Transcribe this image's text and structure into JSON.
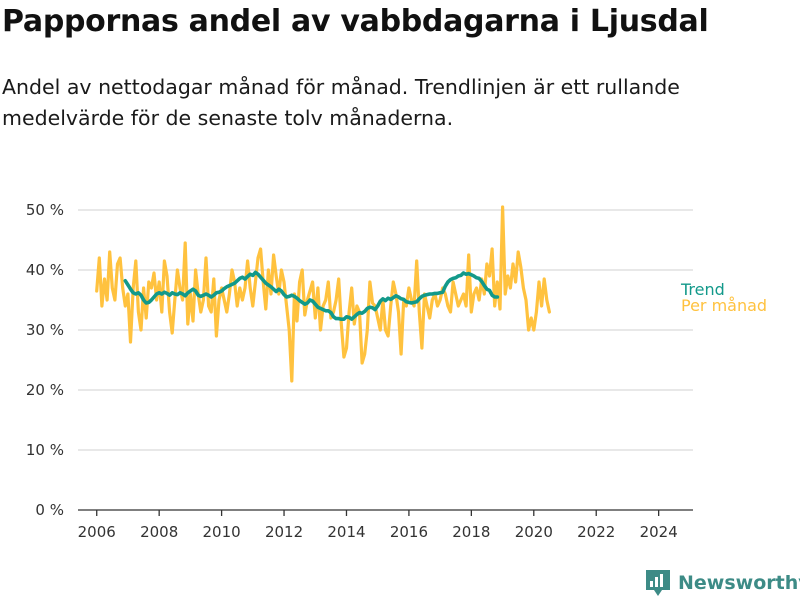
{
  "title": "Pappornas andel av vabbdagarna i Ljusdal",
  "subtitle": "Andel av nettodagar månad för månad. Trendlinjen är ett rullande medelvärde för de senaste tolv månaderna.",
  "brand": "Newsworthy",
  "colors": {
    "monthly": "#ffc23f",
    "trend": "#12998a",
    "grid": "#d9d9d9",
    "axis": "#333333",
    "brand": "#3d8b86"
  },
  "chart_data": {
    "type": "line",
    "title": "Pappornas andel av vabbdagarna i Ljusdal",
    "xlabel": "",
    "ylabel": "",
    "xlim": [
      2005.4,
      2025.1
    ],
    "ylim": [
      0,
      50
    ],
    "grid": true,
    "legend": "right",
    "x_ticks": [
      "2006",
      "2008",
      "2010",
      "2012",
      "2014",
      "2016",
      "2018",
      "2020",
      "2022",
      "2024"
    ],
    "y_ticks": [
      "0 %",
      "10 %",
      "20 %",
      "30 %",
      "40 %",
      "50 %"
    ],
    "series": [
      {
        "name": "Per månad",
        "x_start": 2006.0,
        "x_step": 0.08333,
        "values": [
          36.5,
          42,
          34,
          38.5,
          35,
          43,
          37,
          35,
          41,
          42,
          37,
          34,
          36,
          28,
          37,
          41.5,
          33,
          30,
          37,
          32,
          38,
          37,
          39.5,
          35,
          38,
          33,
          41.5,
          39,
          33,
          29.5,
          35,
          40,
          37,
          35,
          44.5,
          31,
          36,
          31.5,
          40,
          36,
          33,
          35,
          42,
          34,
          33,
          38.5,
          29,
          35,
          37,
          35,
          33,
          36,
          40,
          38,
          34,
          37,
          35,
          37,
          41.5,
          37,
          34,
          38,
          42,
          43.5,
          38,
          33.5,
          40,
          36,
          42.5,
          39,
          36,
          40,
          38,
          34,
          30,
          21.5,
          36,
          31.5,
          38,
          40,
          32.5,
          35,
          36.5,
          38,
          32,
          37,
          30,
          34,
          35,
          38,
          32,
          33,
          35,
          38.5,
          31,
          25.5,
          27,
          33,
          37,
          31,
          34,
          33,
          24.5,
          26,
          30,
          38,
          34.5,
          34,
          32,
          30,
          35,
          30,
          29,
          34,
          38,
          36,
          33,
          26,
          35,
          34,
          37,
          35,
          34,
          41.5,
          33,
          27,
          36,
          34,
          32,
          35,
          36,
          34,
          35,
          37,
          36,
          34,
          33,
          38,
          36,
          34,
          35,
          36,
          34,
          42.5,
          33,
          36,
          37,
          35,
          38.5,
          36,
          41,
          39,
          43.5,
          34,
          38,
          33.5,
          50.5,
          36,
          39,
          37,
          41,
          38,
          43,
          40.5,
          37,
          35,
          30,
          32,
          30,
          33,
          38,
          34,
          38.5,
          35,
          33
        ]
      },
      {
        "name": "Trend",
        "x_start": 2006.9167,
        "x_step": 0.08333,
        "values": [
          38.2,
          37.5,
          36.8,
          36.2,
          36,
          36.2,
          35.8,
          35,
          34.5,
          34.6,
          35,
          35.5,
          36,
          36.2,
          36,
          36.3,
          36.1,
          35.8,
          36.2,
          36,
          35.9,
          36.2,
          36,
          35.7,
          36.2,
          36.5,
          36.8,
          36.5,
          35.8,
          35.6,
          35.8,
          36,
          35.8,
          35.5,
          35.8,
          36.2,
          36.3,
          36.5,
          36.9,
          37.2,
          37.4,
          37.6,
          37.8,
          38.2,
          38.6,
          38.8,
          38.5,
          38.9,
          39.3,
          39.1,
          39.6,
          39.3,
          38.8,
          38.3,
          37.8,
          37.5,
          37.2,
          36.8,
          36.4,
          36.8,
          36.5,
          35.9,
          35.5,
          35.6,
          35.8,
          35.6,
          35.3,
          34.9,
          34.6,
          34.3,
          34.5,
          35,
          34.8,
          34.3,
          33.8,
          33.6,
          33.4,
          33.2,
          33.2,
          32.9,
          32.2,
          31.9,
          31.9,
          31.8,
          31.8,
          32.2,
          32.1,
          31.8,
          32.2,
          32.6,
          32.9,
          32.8,
          33.1,
          33.6,
          33.8,
          33.7,
          33.4,
          34,
          34.8,
          35.2,
          34.9,
          35.3,
          35.1,
          35.4,
          35.7,
          35.5,
          35.2,
          35.1,
          34.7,
          34.6,
          34.5,
          34.6,
          34.7,
          35.2,
          35.6,
          35.8,
          35.9,
          36,
          36,
          36.1,
          36.1,
          36.2,
          36.3,
          37.3,
          38,
          38.4,
          38.6,
          38.7,
          39,
          39.1,
          39.5,
          39.3,
          39.4,
          39.2,
          39,
          38.7,
          38.6,
          38.1,
          37.4,
          36.8,
          36.6,
          35.8,
          35.5,
          35.5
        ]
      }
    ]
  }
}
